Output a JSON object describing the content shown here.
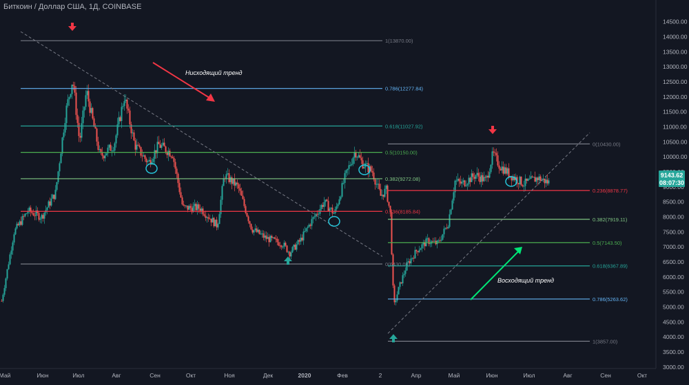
{
  "chart_title": "Биткоин / Доллар США, 1Д, COINBASE",
  "colors": {
    "background": "#131722",
    "axis_text": "#b2b5be",
    "up_candle": "#26a69a",
    "down_candle": "#ef5350",
    "current_price_badge": "#26a69a",
    "downtrend_arrow": "#f23645",
    "uptrend_arrow": "#00e676",
    "pivot_circle": "#26c6da"
  },
  "price_axis": {
    "labels": [
      "14500.00",
      "14000.00",
      "13500.00",
      "13000.00",
      "12500.00",
      "12000.00",
      "11500.00",
      "11000.00",
      "10500.00",
      "10000.00",
      "9500.00",
      "9000.00",
      "8500.00",
      "8000.00",
      "7500.00",
      "7000.00",
      "6500.00",
      "6000.00",
      "5500.00",
      "5000.00",
      "4500.00",
      "4000.00",
      "3500.00",
      "3000.00"
    ]
  },
  "time_axis": {
    "labels": [
      "Май",
      "Июн",
      "Июл",
      "Авг",
      "Сен",
      "Окт",
      "Ноя",
      "Дек",
      "2020",
      "Фев",
      "2",
      "Апр",
      "Май",
      "Июн",
      "Июл",
      "Авг",
      "Сен",
      "Окт"
    ]
  },
  "current_price": {
    "value": "9143.62",
    "countdown": "08:07:30"
  },
  "fib_downtrend": {
    "levels": [
      {
        "label": "1(13870.00)",
        "price": 13870,
        "color": "#787b86"
      },
      {
        "label": "0.786(12277.84)",
        "price": 12277.84,
        "color": "#64b5f6"
      },
      {
        "label": "0.618(11027.92)",
        "price": 11027.92,
        "color": "#26a69a"
      },
      {
        "label": "0.5(10150.00)",
        "price": 10150,
        "color": "#4caf50"
      },
      {
        "label": "0.382(9272.08)",
        "price": 9272.08,
        "color": "#81c784"
      },
      {
        "label": "0.236(8185.84)",
        "price": 8185.84,
        "color": "#f23645"
      },
      {
        "label": "0(6430.00)",
        "price": 6430,
        "color": "#787b86"
      }
    ]
  },
  "fib_uptrend": {
    "levels": [
      {
        "label": "0(10430.00)",
        "price": 10430,
        "color": "#787b86"
      },
      {
        "label": "0.236(8878.77)",
        "price": 8878.77,
        "color": "#f23645"
      },
      {
        "label": "0.382(7919.11)",
        "price": 7919.11,
        "color": "#81c784"
      },
      {
        "label": "0.5(7143.50)",
        "price": 7143.5,
        "color": "#4caf50"
      },
      {
        "label": "0.618(6367.89)",
        "price": 6367.89,
        "color": "#26a69a"
      },
      {
        "label": "0.786(5263.62)",
        "price": 5263.62,
        "color": "#64b5f6"
      },
      {
        "label": "1(3857.00)",
        "price": 3857,
        "color": "#787b86"
      }
    ]
  },
  "annotations": {
    "downtrend": "Нисходящий тренд",
    "uptrend": "Восходящий тренд"
  },
  "chart_data": {
    "type": "candlestick",
    "title": "Биткоин / Доллар США, 1Д, COINBASE",
    "xlabel": "",
    "ylabel": "",
    "ylim": [
      2800,
      14800
    ],
    "x": [
      "2019-05",
      "2019-06",
      "2019-07",
      "2019-08",
      "2019-09",
      "2019-10",
      "2019-11",
      "2019-12",
      "2020-01",
      "2020-02",
      "2020-03",
      "2020-04",
      "2020-05",
      "2020-06",
      "2020-07"
    ],
    "series": [
      {
        "values": [
          5200,
          8300,
          10400,
          10800,
          10200,
          8900,
          7500,
          7100,
          8300,
          9700,
          5900,
          7100,
          9200,
          9600,
          9100
        ]
      }
    ],
    "y_reference_levels": [
      13870,
      12277.84,
      11027.92,
      10150,
      9272.08,
      8185.84,
      6430,
      10430,
      8878.77,
      7919.11,
      7143.5,
      6367.89,
      5263.62,
      3857
    ]
  }
}
